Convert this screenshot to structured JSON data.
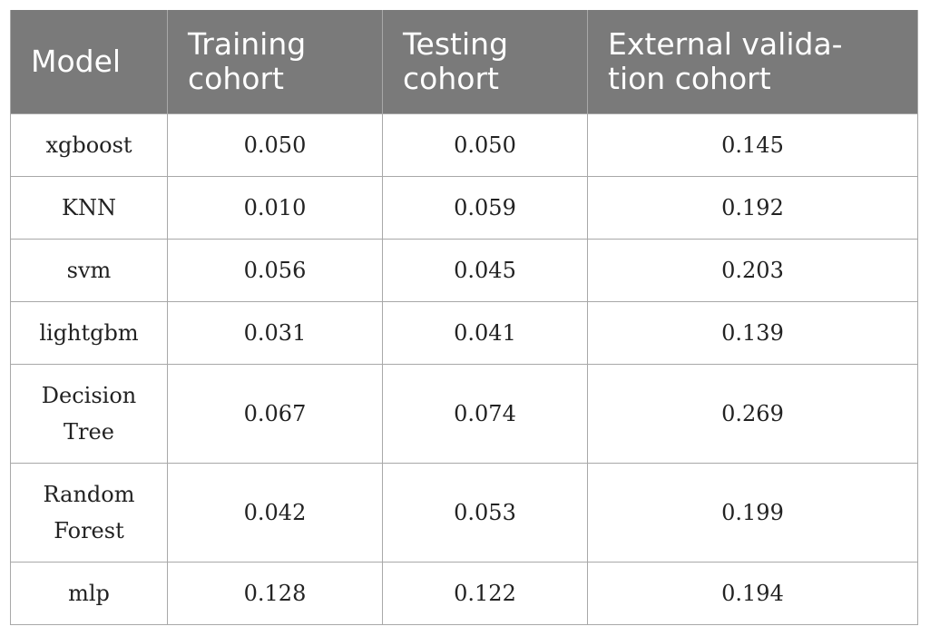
{
  "table": {
    "headers": [
      "Model",
      "Training cohort",
      "Testing cohort",
      "External valida-tion cohort"
    ],
    "header_lines": [
      [
        "Model"
      ],
      [
        "Training",
        "cohort"
      ],
      [
        "Testing",
        "cohort"
      ],
      [
        "External valida-",
        "tion cohort"
      ]
    ],
    "rows": [
      {
        "model": [
          "xgboost"
        ],
        "training": "0.050",
        "testing": "0.050",
        "external": "0.145"
      },
      {
        "model": [
          "KNN"
        ],
        "training": "0.010",
        "testing": "0.059",
        "external": "0.192"
      },
      {
        "model": [
          "svm"
        ],
        "training": "0.056",
        "testing": "0.045",
        "external": "0.203"
      },
      {
        "model": [
          "lightgbm"
        ],
        "training": "0.031",
        "testing": "0.041",
        "external": "0.139"
      },
      {
        "model": [
          "Decision",
          "Tree"
        ],
        "training": "0.067",
        "testing": "0.074",
        "external": "0.269"
      },
      {
        "model": [
          "Random",
          "Forest"
        ],
        "training": "0.042",
        "testing": "0.053",
        "external": "0.199"
      },
      {
        "model": [
          "mlp"
        ],
        "training": "0.128",
        "testing": "0.122",
        "external": "0.194"
      }
    ]
  },
  "colors": {
    "header_bg": "#7a7a7a",
    "header_text": "#ffffff",
    "border": "#a8a8a8",
    "body_text": "#222222"
  }
}
